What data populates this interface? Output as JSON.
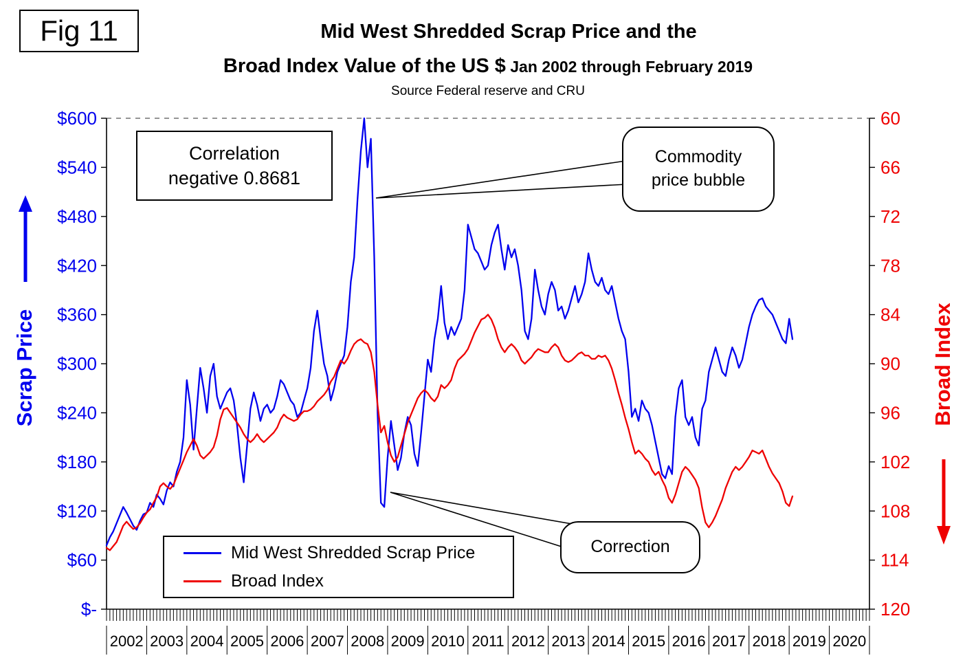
{
  "figure_label": "Fig 11",
  "title": {
    "line1": "Mid West Shredded Scrap Price and the",
    "line2_main": "Broad Index Value of the US $",
    "line2_sub": " Jan 2002 through February 2019",
    "source": "Source Federal reserve and CRU"
  },
  "annotations": {
    "correlation_line1": "Correlation",
    "correlation_line2": "negative 0.8681",
    "bubble_line1": "Commodity",
    "bubble_line2": "price bubble",
    "correction": "Correction"
  },
  "legend": [
    {
      "label": "Mid West Shredded Scrap Price",
      "color": "#0000ee"
    },
    {
      "label": "Broad Index",
      "color": "#ee0000"
    }
  ],
  "chart_data": {
    "type": "line",
    "title": "Mid West Shredded Scrap Price and the Broad Index Value of the US $ Jan 2002 through February 2019",
    "x_start": "2002-01",
    "x_end": "2019-02",
    "x_axis_years": [
      "2002",
      "2003",
      "2004",
      "2005",
      "2006",
      "2007",
      "2008",
      "2009",
      "2010",
      "2011",
      "2012",
      "2013",
      "2014",
      "2015",
      "2016",
      "2017",
      "2018",
      "2019",
      "2020"
    ],
    "left_axis": {
      "title": "Scrap Price",
      "color": "#0000ee",
      "ylim": [
        0,
        600
      ],
      "tick_labels": [
        "$600",
        "$540",
        "$480",
        "$420",
        "$360",
        "$300",
        "$240",
        "$180",
        "$120",
        "$60",
        "$-"
      ],
      "tick_values": [
        600,
        540,
        480,
        420,
        360,
        300,
        240,
        180,
        120,
        60,
        0
      ]
    },
    "right_axis": {
      "title": "Broad Index",
      "color": "#ee0000",
      "ylim_inverted": [
        60,
        120
      ],
      "tick_labels": [
        "60",
        "66",
        "72",
        "78",
        "84",
        "90",
        "96",
        "102",
        "108",
        "114",
        "120"
      ],
      "tick_values": [
        60,
        66,
        72,
        78,
        84,
        90,
        96,
        102,
        108,
        114,
        120
      ]
    },
    "grid": "top dashed line only",
    "legend_position": "bottom-left inside plot",
    "series": [
      {
        "name": "Mid West Shredded Scrap Price",
        "axis": "left",
        "color": "#0000ee",
        "values": [
          78,
          88,
          95,
          105,
          115,
          125,
          118,
          110,
          102,
          97,
          108,
          116,
          118,
          130,
          125,
          140,
          135,
          128,
          145,
          155,
          150,
          168,
          180,
          210,
          280,
          250,
          195,
          245,
          295,
          270,
          240,
          285,
          300,
          260,
          245,
          255,
          265,
          270,
          255,
          225,
          185,
          155,
          200,
          245,
          265,
          250,
          230,
          245,
          250,
          240,
          245,
          260,
          280,
          275,
          265,
          255,
          250,
          235,
          240,
          255,
          270,
          295,
          340,
          365,
          330,
          300,
          285,
          255,
          270,
          290,
          300,
          310,
          345,
          400,
          430,
          500,
          560,
          600,
          540,
          575,
          430,
          240,
          130,
          125,
          185,
          230,
          200,
          170,
          185,
          215,
          235,
          225,
          190,
          175,
          215,
          260,
          305,
          290,
          330,
          355,
          395,
          350,
          330,
          345,
          335,
          345,
          355,
          390,
          470,
          455,
          440,
          435,
          425,
          415,
          420,
          445,
          460,
          470,
          440,
          415,
          445,
          430,
          440,
          420,
          390,
          340,
          330,
          355,
          415,
          390,
          370,
          360,
          385,
          400,
          390,
          365,
          370,
          355,
          365,
          380,
          395,
          375,
          385,
          400,
          435,
          415,
          400,
          395,
          405,
          390,
          385,
          395,
          375,
          355,
          340,
          330,
          290,
          235,
          245,
          230,
          255,
          245,
          240,
          225,
          205,
          185,
          165,
          160,
          175,
          165,
          235,
          270,
          280,
          235,
          225,
          235,
          210,
          200,
          245,
          255,
          290,
          305,
          320,
          305,
          290,
          285,
          305,
          320,
          310,
          295,
          305,
          325,
          345,
          360,
          370,
          378,
          380,
          370,
          365,
          360,
          350,
          340,
          330,
          325,
          355,
          330
        ]
      },
      {
        "name": "Broad Index",
        "axis": "right",
        "color": "#ee0000",
        "values": [
          112.5,
          112.8,
          112.3,
          111.8,
          110.8,
          109.8,
          109.3,
          109.8,
          110.2,
          110.0,
          109.5,
          108.8,
          108.2,
          107.8,
          107.0,
          106.3,
          105.0,
          104.6,
          105.0,
          105.3,
          104.8,
          103.8,
          102.8,
          101.8,
          100.8,
          100.0,
          99.2,
          100.0,
          101.2,
          101.6,
          101.2,
          100.8,
          100.2,
          98.8,
          96.8,
          95.6,
          95.4,
          96.0,
          96.6,
          97.2,
          97.8,
          98.6,
          99.2,
          99.6,
          99.2,
          98.6,
          99.2,
          99.6,
          99.2,
          98.8,
          98.4,
          97.8,
          96.8,
          96.2,
          96.6,
          96.8,
          97.0,
          96.8,
          96.2,
          95.8,
          95.8,
          95.6,
          95.2,
          94.6,
          94.2,
          93.8,
          93.2,
          92.2,
          91.6,
          90.6,
          89.6,
          90.0,
          89.4,
          88.4,
          87.6,
          87.2,
          87.0,
          87.4,
          87.6,
          88.6,
          91.0,
          95.0,
          98.4,
          97.6,
          99.6,
          101.2,
          102.0,
          101.4,
          100.0,
          98.6,
          97.2,
          96.2,
          95.2,
          94.2,
          93.6,
          93.2,
          93.6,
          94.2,
          94.6,
          94.0,
          92.6,
          93.0,
          92.6,
          92.0,
          90.6,
          89.6,
          89.2,
          88.8,
          88.2,
          87.2,
          86.2,
          85.4,
          84.6,
          84.4,
          84.0,
          84.6,
          85.6,
          87.0,
          88.0,
          88.6,
          88.0,
          87.6,
          88.0,
          88.6,
          89.6,
          90.0,
          89.6,
          89.2,
          88.6,
          88.2,
          88.4,
          88.6,
          88.6,
          88.0,
          87.6,
          88.0,
          89.0,
          89.6,
          89.8,
          89.6,
          89.2,
          88.8,
          88.6,
          89.0,
          89.0,
          89.4,
          89.4,
          89.0,
          89.2,
          89.0,
          89.6,
          90.6,
          92.0,
          93.6,
          95.0,
          96.6,
          98.0,
          99.6,
          101.0,
          100.6,
          101.0,
          101.6,
          102.0,
          103.0,
          103.6,
          103.2,
          104.2,
          105.0,
          106.4,
          107.0,
          106.0,
          104.6,
          103.2,
          102.6,
          103.0,
          103.6,
          104.2,
          105.2,
          107.6,
          109.4,
          110.0,
          109.4,
          108.6,
          107.6,
          106.6,
          105.2,
          104.2,
          103.2,
          102.6,
          103.0,
          102.6,
          102.0,
          101.4,
          100.6,
          100.8,
          101.0,
          100.6,
          101.6,
          102.6,
          103.4,
          104.0,
          104.6,
          105.6,
          107.0,
          107.4,
          106.2
        ]
      }
    ]
  }
}
